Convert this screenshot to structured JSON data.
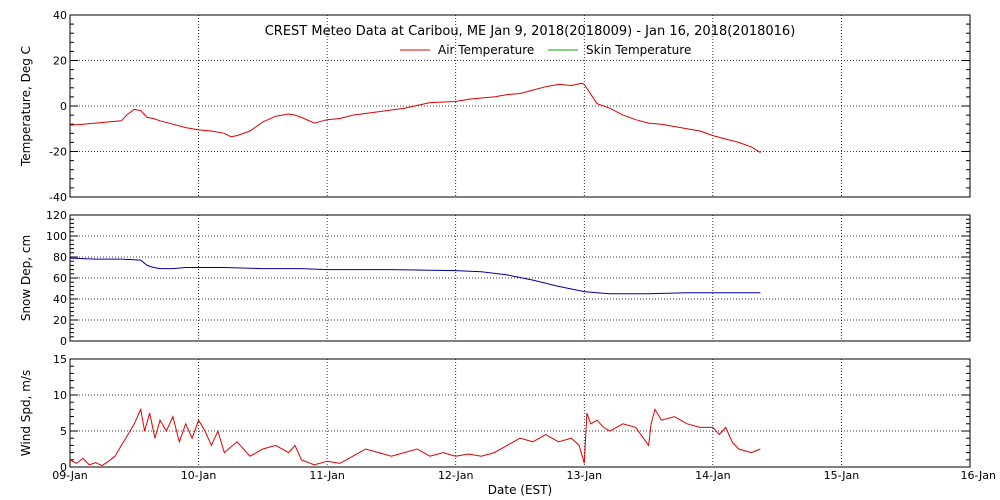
{
  "title": "CREST Meteo Data at Caribou, ME   Jan  9, 2018(2018009) - Jan 16, 2018(2018016)",
  "xlabel": "Date (EST)",
  "x_ticks": [
    "09-Jan",
    "10-Jan",
    "11-Jan",
    "12-Jan",
    "13-Jan",
    "14-Jan",
    "15-Jan",
    "16-Jan"
  ],
  "colors": {
    "air": "#dd0000",
    "skin": "#00aa00",
    "snow": "#00009b",
    "wind": "#dd0000",
    "grid": "#000000"
  },
  "chart_data": [
    {
      "type": "line",
      "ylabel": "Temperature, Deg C",
      "ylim": [
        -40,
        40
      ],
      "y_ticks": [
        -40,
        -20,
        0,
        20,
        40
      ],
      "xlim": [
        0,
        7
      ],
      "grid": true,
      "legend": "top-center",
      "series": [
        {
          "name": "Air Temperature",
          "x": [
            0,
            0.1,
            0.2,
            0.3,
            0.4,
            0.45,
            0.5,
            0.55,
            0.6,
            0.65,
            0.7,
            0.8,
            0.9,
            1.0,
            1.1,
            1.2,
            1.25,
            1.3,
            1.4,
            1.5,
            1.6,
            1.7,
            1.75,
            1.8,
            1.9,
            2.0,
            2.1,
            2.2,
            2.4,
            2.6,
            2.8,
            3.0,
            3.1,
            3.2,
            3.3,
            3.4,
            3.5,
            3.6,
            3.7,
            3.8,
            3.9,
            3.98,
            4.0,
            4.1,
            4.2,
            4.3,
            4.4,
            4.5,
            4.6,
            4.7,
            4.8,
            4.9,
            5.0,
            5.1,
            5.2,
            5.3,
            5.37
          ],
          "values": [
            -8.5,
            -8,
            -7.5,
            -7,
            -6.5,
            -3.5,
            -1.5,
            -2,
            -5,
            -5.5,
            -6.5,
            -8,
            -9.5,
            -10.5,
            -11,
            -12,
            -13.5,
            -13,
            -11,
            -7,
            -4.5,
            -3.5,
            -4,
            -5,
            -7.5,
            -6,
            -5.5,
            -4,
            -2.5,
            -1,
            1.5,
            2,
            3,
            3.5,
            4,
            5,
            5.5,
            7,
            8.5,
            9.5,
            9,
            10,
            9.5,
            1,
            -1,
            -4,
            -6,
            -7.5,
            -8,
            -9,
            -10,
            -11,
            -13,
            -14.5,
            -16,
            -18,
            -20.5
          ]
        },
        {
          "name": "Skin Temperature",
          "x": [],
          "values": []
        }
      ]
    },
    {
      "type": "line",
      "ylabel": "Snow Dep, cm",
      "ylim": [
        0,
        120
      ],
      "y_ticks": [
        0,
        20,
        40,
        60,
        80,
        100,
        120
      ],
      "xlim": [
        0,
        7
      ],
      "grid": true,
      "series": [
        {
          "x": [
            0,
            0.2,
            0.4,
            0.55,
            0.6,
            0.65,
            0.7,
            0.8,
            0.9,
            1.0,
            1.2,
            1.5,
            1.8,
            2.0,
            2.5,
            3.0,
            3.2,
            3.4,
            3.6,
            3.8,
            4.0,
            4.1,
            4.2,
            4.5,
            4.8,
            5.0,
            5.2,
            5.37
          ],
          "values": [
            79,
            78,
            78,
            77,
            72,
            70,
            69,
            69,
            70,
            70,
            70,
            69,
            69,
            68,
            68,
            67,
            66,
            63,
            58,
            52,
            47,
            46,
            45,
            45,
            46,
            46,
            46,
            46
          ]
        }
      ]
    },
    {
      "type": "line",
      "ylabel": "Wind Spd, m/s",
      "ylim": [
        0,
        15
      ],
      "y_ticks": [
        0,
        5,
        10,
        15
      ],
      "xlim": [
        0,
        7
      ],
      "grid": true,
      "series": [
        {
          "x": [
            0,
            0.05,
            0.1,
            0.15,
            0.2,
            0.25,
            0.3,
            0.35,
            0.4,
            0.45,
            0.5,
            0.55,
            0.58,
            0.62,
            0.66,
            0.7,
            0.75,
            0.8,
            0.85,
            0.9,
            0.95,
            1.0,
            1.05,
            1.1,
            1.15,
            1.2,
            1.3,
            1.4,
            1.5,
            1.6,
            1.7,
            1.75,
            1.8,
            1.9,
            2.0,
            2.1,
            2.2,
            2.3,
            2.4,
            2.5,
            2.6,
            2.7,
            2.8,
            2.9,
            3.0,
            3.1,
            3.2,
            3.3,
            3.4,
            3.5,
            3.6,
            3.7,
            3.8,
            3.9,
            3.96,
            4.0,
            4.02,
            4.05,
            4.1,
            4.15,
            4.2,
            4.3,
            4.4,
            4.5,
            4.52,
            4.55,
            4.6,
            4.7,
            4.8,
            4.9,
            5.0,
            5.05,
            5.1,
            5.15,
            5.2,
            5.3,
            5.37
          ],
          "values": [
            1.0,
            0.5,
            1.2,
            0.3,
            0.6,
            0.2,
            0.8,
            1.5,
            3,
            4.5,
            6,
            8,
            5,
            7.5,
            4,
            6.5,
            5,
            7,
            3.5,
            6,
            4,
            6.5,
            5,
            3,
            5,
            2,
            3.5,
            1.5,
            2.5,
            3,
            2,
            3,
            1,
            0.3,
            0.8,
            0.5,
            1.5,
            2.5,
            2,
            1.5,
            2,
            2.5,
            1.5,
            2,
            1.5,
            1.8,
            1.5,
            2,
            3,
            4,
            3.5,
            4.5,
            3.5,
            4,
            3,
            0.5,
            7.5,
            6,
            6.5,
            5.5,
            5,
            6,
            5.5,
            3,
            6,
            8,
            6.5,
            7,
            6,
            5.5,
            5.5,
            4.5,
            5.5,
            3.5,
            2.5,
            2,
            2.5
          ]
        }
      ]
    }
  ]
}
